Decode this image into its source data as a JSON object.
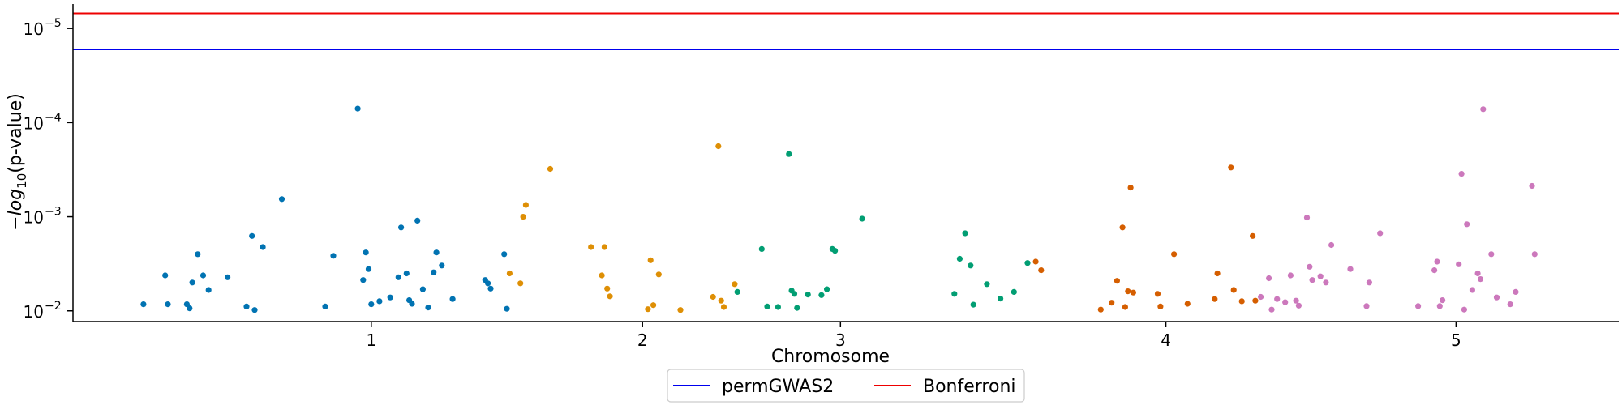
{
  "chart_data": {
    "type": "scatter",
    "title": "",
    "xlabel": "Chromosome",
    "ylabel": "−log10(p-value)",
    "y_scale": "log",
    "y_inverted": true,
    "ylim": [
      0.013,
      5.5e-06
    ],
    "xlim": [
      0,
      5.7
    ],
    "xticks": [
      {
        "value": 1.1,
        "label": "1"
      },
      {
        "value": 2.1,
        "label": "2"
      },
      {
        "value": 2.83,
        "label": "3"
      },
      {
        "value": 4.03,
        "label": "4"
      },
      {
        "value": 5.1,
        "label": "5"
      }
    ],
    "yticks": [
      {
        "value": 1e-05,
        "label": "10",
        "exp": "−5"
      },
      {
        "value": 0.0001,
        "label": "10",
        "exp": "−4"
      },
      {
        "value": 0.001,
        "label": "10",
        "exp": "−3"
      },
      {
        "value": 0.01,
        "label": "10",
        "exp": "−2"
      }
    ],
    "grid": false,
    "legend_position": "bottom-center",
    "thresholds": [
      {
        "name": "permGWAS2",
        "value": 1.67e-05,
        "color": "#0000ee"
      },
      {
        "name": "Bonferroni",
        "value": 6.9e-06,
        "color": "#ee0000"
      }
    ],
    "series": [
      {
        "chromosome": "1",
        "color": "#0173b2",
        "points": [
          [
            0.26,
            0.0085
          ],
          [
            0.34,
            0.0042
          ],
          [
            0.35,
            0.0085
          ],
          [
            0.42,
            0.0085
          ],
          [
            0.43,
            0.0094
          ],
          [
            0.44,
            0.005
          ],
          [
            0.46,
            0.0025
          ],
          [
            0.48,
            0.0042
          ],
          [
            0.5,
            0.006
          ],
          [
            0.57,
            0.0044
          ],
          [
            0.64,
            0.009
          ],
          [
            0.66,
            0.0016
          ],
          [
            0.67,
            0.0098
          ],
          [
            0.7,
            0.0021
          ],
          [
            0.77,
            0.00065
          ],
          [
            0.93,
            0.009
          ],
          [
            0.96,
            0.0026
          ],
          [
            1.05,
            7.1e-05
          ],
          [
            1.07,
            0.0047
          ],
          [
            1.08,
            0.0024
          ],
          [
            1.09,
            0.0036
          ],
          [
            1.1,
            0.0085
          ],
          [
            1.13,
            0.0079
          ],
          [
            1.17,
            0.0072
          ],
          [
            1.2,
            0.0044
          ],
          [
            1.21,
            0.0013
          ],
          [
            1.23,
            0.004
          ],
          [
            1.24,
            0.0077
          ],
          [
            1.25,
            0.0084
          ],
          [
            1.27,
            0.0011
          ],
          [
            1.29,
            0.0059
          ],
          [
            1.31,
            0.0092
          ],
          [
            1.33,
            0.0039
          ],
          [
            1.34,
            0.0024
          ],
          [
            1.36,
            0.0033
          ],
          [
            1.4,
            0.0075
          ],
          [
            1.52,
            0.0047
          ],
          [
            1.53,
            0.0051
          ],
          [
            1.54,
            0.0058
          ],
          [
            1.59,
            0.0025
          ],
          [
            1.6,
            0.0095
          ]
        ]
      },
      {
        "chromosome": "2",
        "color": "#de8f05",
        "points": [
          [
            1.61,
            0.004
          ],
          [
            1.65,
            0.0051
          ],
          [
            1.66,
            0.001
          ],
          [
            1.67,
            0.00075
          ],
          [
            1.76,
            0.00031
          ],
          [
            1.91,
            0.0021
          ],
          [
            1.95,
            0.0042
          ],
          [
            1.96,
            0.0021
          ],
          [
            1.97,
            0.0058
          ],
          [
            1.98,
            0.007
          ],
          [
            2.12,
            0.0096
          ],
          [
            2.13,
            0.0029
          ],
          [
            2.14,
            0.0087
          ],
          [
            2.16,
            0.0041
          ],
          [
            2.24,
            0.0098
          ],
          [
            2.36,
            0.0071
          ],
          [
            2.38,
            0.000178
          ],
          [
            2.39,
            0.0078
          ],
          [
            2.4,
            0.0091
          ],
          [
            2.44,
            0.0052
          ]
        ]
      },
      {
        "chromosome": "3",
        "color": "#029e73",
        "points": [
          [
            2.45,
            0.0063
          ],
          [
            2.54,
            0.0022
          ],
          [
            2.56,
            0.009
          ],
          [
            2.6,
            0.0091
          ],
          [
            2.64,
            0.000216
          ],
          [
            2.65,
            0.0061
          ],
          [
            2.66,
            0.0066
          ],
          [
            2.67,
            0.0093
          ],
          [
            2.71,
            0.0067
          ],
          [
            2.76,
            0.0068
          ],
          [
            2.78,
            0.0059
          ],
          [
            2.8,
            0.0022
          ],
          [
            2.81,
            0.0023
          ],
          [
            2.91,
            0.00105
          ],
          [
            3.25,
            0.0066
          ],
          [
            3.27,
            0.0028
          ],
          [
            3.29,
            0.0015
          ],
          [
            3.31,
            0.0033
          ],
          [
            3.32,
            0.0086
          ],
          [
            3.37,
            0.0052
          ],
          [
            3.42,
            0.0074
          ],
          [
            3.47,
            0.0063
          ],
          [
            3.52,
            0.0031
          ]
        ]
      },
      {
        "chromosome": "4",
        "color": "#d55e00",
        "points": [
          [
            3.55,
            0.003
          ],
          [
            3.57,
            0.0037
          ],
          [
            3.79,
            0.0097
          ],
          [
            3.83,
            0.0082
          ],
          [
            3.85,
            0.0048
          ],
          [
            3.87,
            0.0013
          ],
          [
            3.88,
            0.0091
          ],
          [
            3.89,
            0.0062
          ],
          [
            3.9,
            0.00049
          ],
          [
            3.91,
            0.0064
          ],
          [
            4.0,
            0.0066
          ],
          [
            4.01,
            0.009
          ],
          [
            4.06,
            0.0025
          ],
          [
            4.11,
            0.0084
          ],
          [
            4.21,
            0.0075
          ],
          [
            4.22,
            0.004
          ],
          [
            4.27,
            0.0003
          ],
          [
            4.28,
            0.006
          ],
          [
            4.31,
            0.0079
          ],
          [
            4.35,
            0.0016
          ],
          [
            4.36,
            0.0078
          ]
        ]
      },
      {
        "chromosome": "5",
        "color": "#cc78bc",
        "points": [
          [
            4.38,
            0.0071
          ],
          [
            4.41,
            0.0045
          ],
          [
            4.42,
            0.0097
          ],
          [
            4.44,
            0.0075
          ],
          [
            4.47,
            0.0081
          ],
          [
            4.49,
            0.0042
          ],
          [
            4.51,
            0.0078
          ],
          [
            4.52,
            0.0088
          ],
          [
            4.55,
            0.00102
          ],
          [
            4.56,
            0.0034
          ],
          [
            4.57,
            0.0047
          ],
          [
            4.6,
            0.0043
          ],
          [
            4.62,
            0.005
          ],
          [
            4.64,
            0.002
          ],
          [
            4.71,
            0.0036
          ],
          [
            4.77,
            0.0089
          ],
          [
            4.78,
            0.005
          ],
          [
            4.82,
            0.0015
          ],
          [
            4.96,
            0.0089
          ],
          [
            5.02,
            0.0037
          ],
          [
            5.03,
            0.003
          ],
          [
            5.04,
            0.0089
          ],
          [
            5.05,
            0.0077
          ],
          [
            5.11,
            0.0032
          ],
          [
            5.12,
            0.00035
          ],
          [
            5.13,
            0.0097
          ],
          [
            5.14,
            0.0012
          ],
          [
            5.16,
            0.006
          ],
          [
            5.18,
            0.004
          ],
          [
            5.19,
            0.0046
          ],
          [
            5.2,
            7.2e-05
          ],
          [
            5.23,
            0.0025
          ],
          [
            5.25,
            0.0072
          ],
          [
            5.3,
            0.0085
          ],
          [
            5.32,
            0.0063
          ],
          [
            5.38,
            0.00047
          ],
          [
            5.39,
            0.0025
          ]
        ]
      }
    ]
  }
}
